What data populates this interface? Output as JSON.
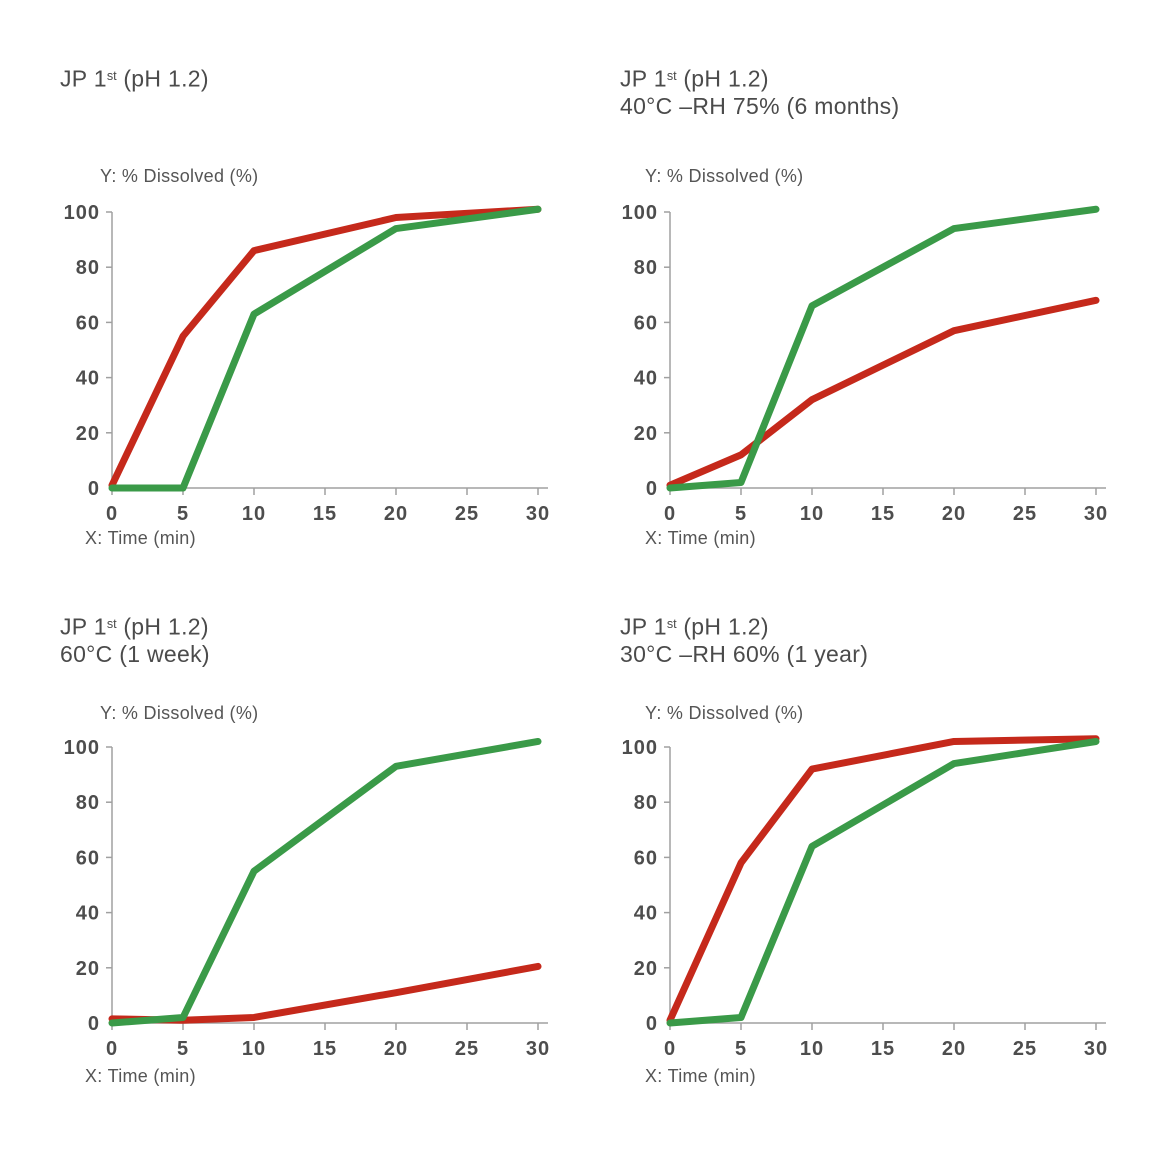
{
  "style": {
    "background": "#ffffff",
    "axis_color": "#a0a0a0",
    "tick_text_color": "#4d4d4d",
    "title_color": "#4b4b4b",
    "red_series_color": "#c5291b",
    "green_series_color": "#3a9a48",
    "line_width": 7
  },
  "chart_data": [
    {
      "type": "line",
      "title_prefix": "JP 1",
      "title_sup": "st",
      "title_suffix": " (pH 1.2)",
      "condition": "",
      "ylabel": "Y: % Dissolved (%)",
      "xlabel": "X: Time (min)",
      "x": [
        0,
        5,
        10,
        20,
        30
      ],
      "xlim": [
        0,
        30
      ],
      "ylim": [
        0,
        100
      ],
      "x_ticks": [
        0,
        5,
        10,
        15,
        20,
        25,
        30
      ],
      "y_ticks": [
        0,
        20,
        40,
        60,
        80,
        100
      ],
      "grid": false,
      "legend": "none",
      "series": [
        {
          "name": "red",
          "color": "#c5291b",
          "values": [
            1,
            55,
            86,
            98,
            101
          ]
        },
        {
          "name": "green",
          "color": "#3a9a48",
          "values": [
            0,
            0,
            63,
            94,
            101
          ]
        }
      ]
    },
    {
      "type": "line",
      "title_prefix": "JP 1",
      "title_sup": "st",
      "title_suffix": " (pH 1.2)",
      "condition": "40°C –RH 75% (6 months)",
      "ylabel": "Y: % Dissolved (%)",
      "xlabel": "X: Time (min)",
      "x": [
        0,
        5,
        10,
        20,
        30
      ],
      "xlim": [
        0,
        30
      ],
      "ylim": [
        0,
        100
      ],
      "x_ticks": [
        0,
        5,
        10,
        15,
        20,
        25,
        30
      ],
      "y_ticks": [
        0,
        20,
        40,
        60,
        80,
        100
      ],
      "grid": false,
      "legend": "none",
      "series": [
        {
          "name": "red",
          "color": "#c5291b",
          "values": [
            1,
            12,
            32,
            57,
            68
          ]
        },
        {
          "name": "green",
          "color": "#3a9a48",
          "values": [
            0,
            2,
            66,
            94,
            101
          ]
        }
      ]
    },
    {
      "type": "line",
      "title_prefix": "JP 1",
      "title_sup": "st",
      "title_suffix": " (pH 1.2)",
      "condition": "60°C (1 week)",
      "ylabel": "Y: % Dissolved (%)",
      "xlabel": "X: Time (min)",
      "x": [
        0,
        5,
        10,
        20,
        30
      ],
      "xlim": [
        0,
        30
      ],
      "ylim": [
        0,
        100
      ],
      "x_ticks": [
        0,
        5,
        10,
        15,
        20,
        25,
        30
      ],
      "y_ticks": [
        0,
        20,
        40,
        60,
        80,
        100
      ],
      "grid": false,
      "legend": "none",
      "series": [
        {
          "name": "red",
          "color": "#c5291b",
          "values": [
            1.5,
            1,
            2,
            11,
            20.5
          ]
        },
        {
          "name": "green",
          "color": "#3a9a48",
          "values": [
            0,
            2,
            55,
            93,
            102
          ]
        }
      ]
    },
    {
      "type": "line",
      "title_prefix": "JP 1",
      "title_sup": "st",
      "title_suffix": " (pH 1.2)",
      "condition": "30°C –RH 60% (1 year)",
      "ylabel": "Y: % Dissolved (%)",
      "xlabel": "X: Time (min)",
      "x": [
        0,
        5,
        10,
        20,
        30
      ],
      "xlim": [
        0,
        30
      ],
      "ylim": [
        0,
        100
      ],
      "x_ticks": [
        0,
        5,
        10,
        15,
        20,
        25,
        30
      ],
      "y_ticks": [
        0,
        20,
        40,
        60,
        80,
        100
      ],
      "grid": false,
      "legend": "none",
      "series": [
        {
          "name": "red",
          "color": "#c5291b",
          "values": [
            1,
            58,
            92,
            102,
            103
          ]
        },
        {
          "name": "green",
          "color": "#3a9a48",
          "values": [
            0,
            2,
            64,
            94,
            102
          ]
        }
      ]
    }
  ]
}
